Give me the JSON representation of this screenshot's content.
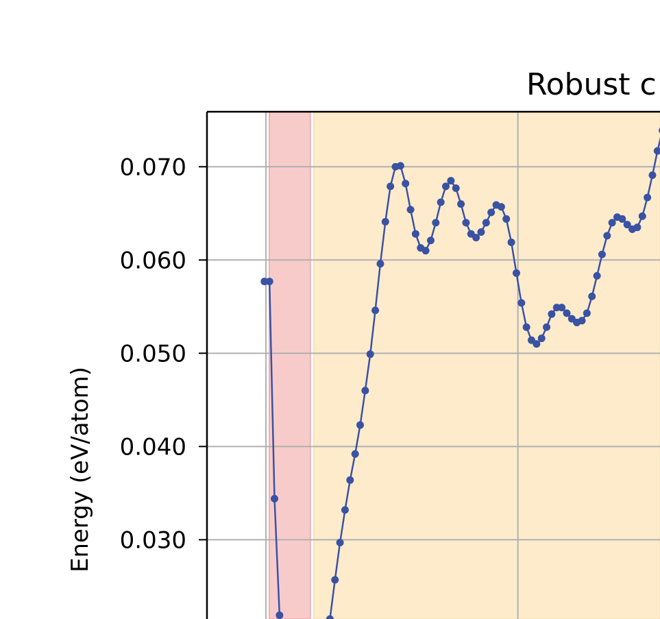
{
  "chart_data": {
    "type": "line",
    "title": "Robust c",
    "y_label": "Energy (eV/atom)",
    "x": [
      0,
      1,
      2,
      3,
      4,
      5,
      6,
      7,
      8,
      9,
      10,
      11,
      12,
      13,
      14,
      15,
      16,
      17,
      18,
      19,
      20,
      21,
      22,
      23,
      24,
      25,
      26,
      27,
      28,
      29,
      30,
      31,
      32,
      33,
      34,
      35,
      36,
      37,
      38,
      39,
      40,
      41,
      42,
      43,
      44,
      45,
      46,
      47,
      48,
      49,
      50,
      51,
      52,
      53,
      54,
      55,
      56,
      57,
      58,
      59,
      60,
      61,
      62,
      63,
      64,
      65,
      66,
      67,
      68,
      69,
      70,
      71,
      72,
      73,
      74,
      75,
      76,
      77,
      78,
      79
    ],
    "series": [
      {
        "color": "#3a52a3",
        "values": [
          0.0577,
          0.0577,
          0.0344,
          0.0219,
          null,
          null,
          null,
          null,
          null,
          null,
          null,
          null,
          null,
          0.0215,
          0.0257,
          0.0297,
          0.0332,
          0.0364,
          0.0392,
          0.0423,
          0.046,
          0.0499,
          0.0546,
          0.0596,
          0.0641,
          0.0679,
          0.07,
          0.0701,
          0.0682,
          0.0654,
          0.0628,
          0.0613,
          0.061,
          0.0621,
          0.064,
          0.0662,
          0.0679,
          0.0685,
          0.0677,
          0.066,
          0.064,
          0.0628,
          0.0624,
          0.063,
          0.064,
          0.0651,
          0.0659,
          0.0657,
          0.0644,
          0.0619,
          0.0586,
          0.0554,
          0.0528,
          0.0514,
          0.051,
          0.0516,
          0.0528,
          0.0542,
          0.0549,
          0.0549,
          0.0543,
          0.0537,
          0.0533,
          0.0535,
          0.0543,
          0.0561,
          0.0583,
          0.0606,
          0.0626,
          0.064,
          0.0646,
          0.0644,
          0.0638,
          0.0633,
          0.0635,
          0.0647,
          0.0667,
          0.0691,
          0.0717,
          0.0739
        ]
      }
    ],
    "xlim": [
      -11.4,
      78.5
    ],
    "ylim": [
      0.0215,
      0.0759
    ],
    "xticks": [
      0.3,
      50.3
    ],
    "yticks": [
      {
        "value": 0.03,
        "label": "0.030"
      },
      {
        "value": 0.04,
        "label": "0.040"
      },
      {
        "value": 0.05,
        "label": "0.050"
      },
      {
        "value": 0.06,
        "label": "0.060"
      },
      {
        "value": 0.07,
        "label": "0.070"
      }
    ],
    "grid": true,
    "spans": [
      {
        "x0": 0.95,
        "x1": 9.1,
        "color": "#f8cbcb",
        "edge": "#f4a0a0"
      },
      {
        "x0": 9.8,
        "x1": 78.5,
        "color": "#fdebcc",
        "edge": "#fbe0b0"
      }
    ]
  }
}
